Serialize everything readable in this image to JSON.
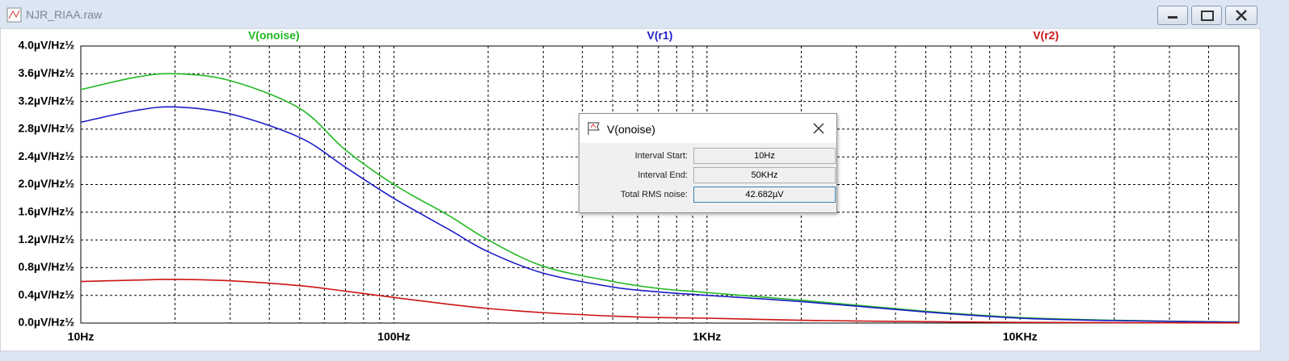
{
  "window": {
    "title": "NJR_RIAA.raw"
  },
  "chart_data": {
    "type": "line",
    "xscale": "log",
    "x": [
      10,
      15,
      20,
      30,
      50,
      70,
      100,
      150,
      200,
      300,
      500,
      700,
      1000,
      2000,
      5000,
      10000,
      20000,
      50000
    ],
    "series": [
      {
        "name": "V(onoise)",
        "color": "#22b822",
        "values": [
          3.37,
          3.55,
          3.6,
          3.5,
          3.1,
          2.5,
          2.0,
          1.55,
          1.2,
          0.82,
          0.6,
          0.5,
          0.44,
          0.33,
          0.17,
          0.08,
          0.04,
          0.015
        ]
      },
      {
        "name": "V(r1)",
        "color": "#1c1cc8",
        "values": [
          2.9,
          3.07,
          3.12,
          3.02,
          2.68,
          2.25,
          1.8,
          1.35,
          1.03,
          0.72,
          0.52,
          0.45,
          0.4,
          0.31,
          0.16,
          0.07,
          0.035,
          0.012
        ]
      },
      {
        "name": "V(r2)",
        "color": "#cc1414",
        "values": [
          0.6,
          0.62,
          0.63,
          0.61,
          0.54,
          0.46,
          0.37,
          0.27,
          0.21,
          0.15,
          0.1,
          0.08,
          0.07,
          0.04,
          0.02,
          0.01,
          0.005,
          0.002
        ]
      }
    ],
    "xlim": [
      10,
      50000
    ],
    "xticks": [
      {
        "value": 10,
        "label": "10Hz"
      },
      {
        "value": 100,
        "label": "100Hz"
      },
      {
        "value": 1000,
        "label": "1KHz"
      },
      {
        "value": 10000,
        "label": "10KHz"
      }
    ],
    "xminor": [
      20,
      30,
      40,
      50,
      60,
      70,
      80,
      90,
      200,
      300,
      400,
      500,
      600,
      700,
      800,
      900,
      2000,
      3000,
      4000,
      5000,
      6000,
      7000,
      8000,
      9000,
      20000,
      30000,
      40000
    ],
    "ylim": [
      0,
      4
    ],
    "yticks": [
      {
        "value": 0,
        "label": "0.0µV/Hz½"
      },
      {
        "value": 0.4,
        "label": "0.4µV/Hz½"
      },
      {
        "value": 0.8,
        "label": "0.8µV/Hz½"
      },
      {
        "value": 1.2,
        "label": "1.2µV/Hz½"
      },
      {
        "value": 1.6,
        "label": "1.6µV/Hz½"
      },
      {
        "value": 2.0,
        "label": "2.0µV/Hz½"
      },
      {
        "value": 2.4,
        "label": "2.4µV/Hz½"
      },
      {
        "value": 2.8,
        "label": "2.8µV/Hz½"
      },
      {
        "value": 3.2,
        "label": "3.2µV/Hz½"
      },
      {
        "value": 3.6,
        "label": "3.6µV/Hz½"
      },
      {
        "value": 4.0,
        "label": "4.0µV/Hz½"
      }
    ],
    "grid": true
  },
  "dialog": {
    "title": "V(onoise)",
    "rows": [
      {
        "label": "Interval Start:",
        "value": "10Hz"
      },
      {
        "label": "Interval End:",
        "value": "50KHz"
      },
      {
        "label": "Total RMS noise:",
        "value": "42.682µV"
      }
    ]
  }
}
